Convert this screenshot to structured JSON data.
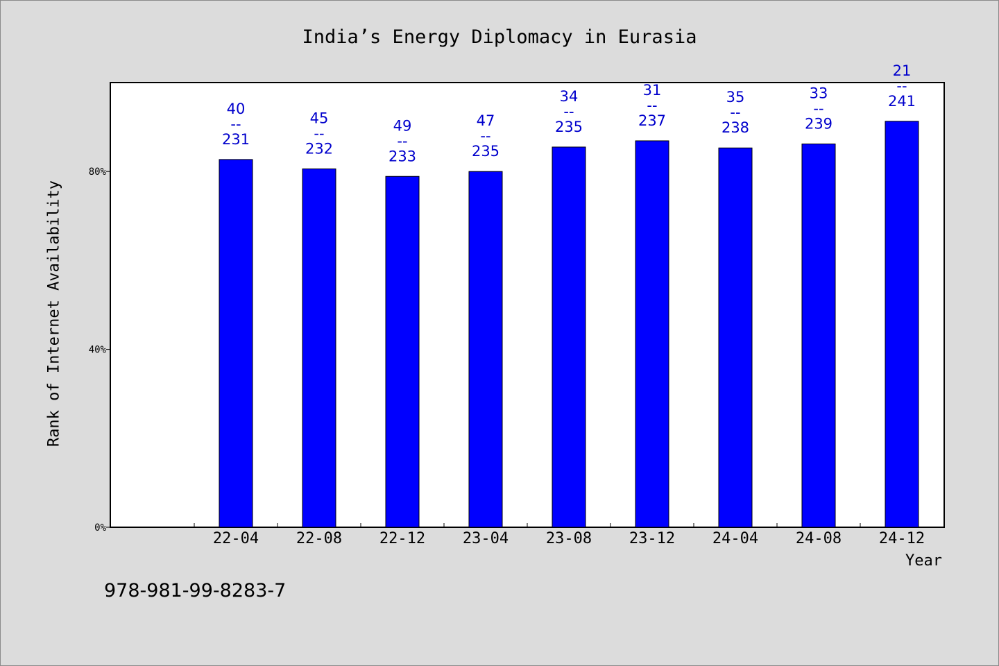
{
  "chart_data": {
    "type": "bar",
    "title": "India’s Energy Diplomacy in Eurasia",
    "xlabel": "Year",
    "ylabel": "Rank of Internet Availability",
    "categories": [
      "22-04",
      "22-08",
      "22-12",
      "23-04",
      "23-08",
      "23-12",
      "24-04",
      "24-08",
      "24-12"
    ],
    "values": [
      82.7,
      80.6,
      78.9,
      80.0,
      85.5,
      86.9,
      85.3,
      86.2,
      91.3
    ],
    "annotations": [
      {
        "rank": "40",
        "sep": "--",
        "total": "231"
      },
      {
        "rank": "45",
        "sep": "--",
        "total": "232"
      },
      {
        "rank": "49",
        "sep": "--",
        "total": "233"
      },
      {
        "rank": "47",
        "sep": "--",
        "total": "235"
      },
      {
        "rank": "34",
        "sep": "--",
        "total": "235"
      },
      {
        "rank": "31",
        "sep": "--",
        "total": "237"
      },
      {
        "rank": "35",
        "sep": "--",
        "total": "238"
      },
      {
        "rank": "33",
        "sep": "--",
        "total": "239"
      },
      {
        "rank": "21",
        "sep": "--",
        "total": "241"
      }
    ],
    "y_ticks": [
      {
        "value": 0,
        "label": "0%"
      },
      {
        "value": 40,
        "label": "40%"
      },
      {
        "value": 80,
        "label": "80%"
      }
    ],
    "ylim": [
      0,
      100
    ],
    "grid": false,
    "bar_color": "#0000ff",
    "label_color": "#0000cc"
  },
  "footer": {
    "isbn": "978-981-99-8283-7"
  }
}
